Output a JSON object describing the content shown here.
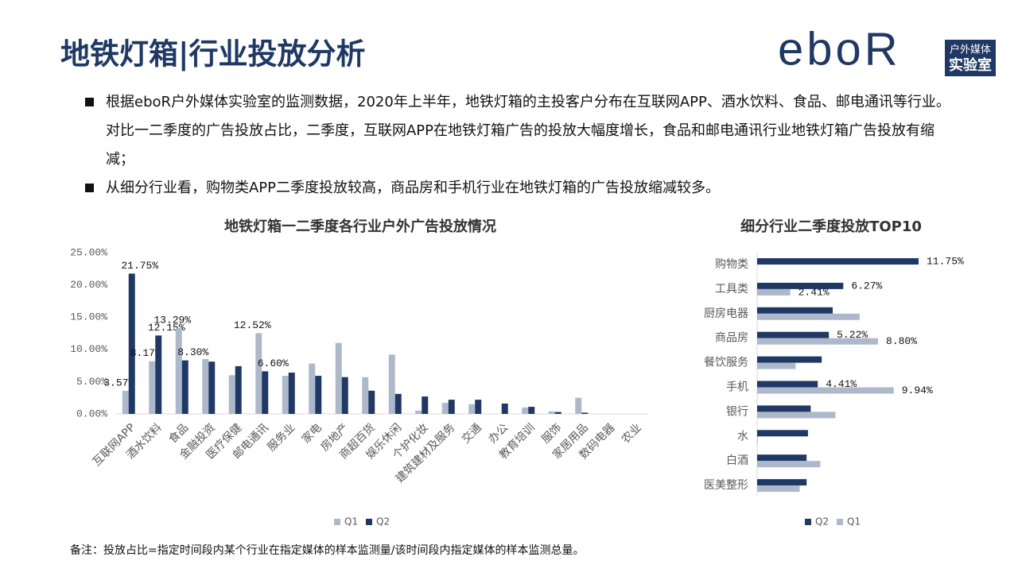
{
  "header": {
    "title": "地铁灯箱|行业投放分析"
  },
  "logo": {
    "mark": "eboR",
    "line1": "户外媒体",
    "line2": "实验室"
  },
  "bullets": [
    "根据eboR户外媒体实验室的监测数据，2020年上半年，地铁灯箱的主投客户分布在互联网APP、酒水饮料、食品、邮电通讯等行业。对比一二季度的广告投放占比，二季度，互联网APP在地铁灯箱广告的投放大幅度增长，食品和邮电通讯行业地铁灯箱广告投放有缩减；",
    "从细分行业看，购物类APP二季度投放较高，商品房和手机行业在地铁灯箱的广告投放缩减较多。"
  ],
  "note": "备注：投放占比=指定时间段内某个行业在指定媒体的样本监测量/该时间段内指定媒体的样本监测总量。",
  "chart_data": [
    {
      "type": "bar",
      "title": "地铁灯箱一二季度各行业户外广告投放情况",
      "categories": [
        "互联网APP",
        "酒水饮料",
        "食品",
        "金融投资",
        "医疗保健",
        "邮电通讯",
        "服务业",
        "家电",
        "房地产",
        "商超百货",
        "娱乐休闲",
        "个护化妆",
        "建筑建材及服务",
        "交通",
        "办公",
        "教育培训",
        "服饰",
        "家居用品",
        "数码电器",
        "农业"
      ],
      "series": [
        {
          "name": "Q1",
          "color": "#adb9ca",
          "values": [
            3.57,
            8.17,
            13.29,
            8.5,
            6.0,
            12.52,
            5.9,
            7.8,
            11.0,
            5.7,
            9.2,
            0.5,
            1.7,
            1.5,
            0,
            1.0,
            0.4,
            2.5,
            0,
            0
          ],
          "value_labels": [
            "3.57%",
            "8.17%",
            "13.29%",
            null,
            null,
            "12.52%",
            null,
            null,
            null,
            null,
            null,
            null,
            null,
            null,
            null,
            null,
            null,
            null,
            null,
            null
          ]
        },
        {
          "name": "Q2",
          "color": "#203864",
          "values": [
            21.75,
            12.15,
            8.3,
            8.1,
            7.4,
            6.6,
            6.4,
            5.9,
            5.7,
            3.6,
            3.1,
            2.7,
            2.2,
            2.2,
            1.6,
            1.1,
            0.3,
            0.2,
            0,
            0
          ],
          "value_labels": [
            "21.75%",
            "12.15%",
            "8.30%",
            null,
            null,
            "6.60%",
            null,
            null,
            null,
            null,
            null,
            null,
            null,
            null,
            null,
            null,
            null,
            null,
            null,
            null
          ]
        }
      ],
      "ylim": [
        0,
        25
      ],
      "yticks": [
        {
          "value": 0,
          "label": "0.00%"
        },
        {
          "value": 5,
          "label": "5.00%"
        },
        {
          "value": 10,
          "label": "10.00%"
        },
        {
          "value": 15,
          "label": "15.00%"
        },
        {
          "value": 20,
          "label": "20.00%"
        },
        {
          "value": 25,
          "label": "25.00%"
        }
      ],
      "grid": false,
      "legend": "bottom"
    },
    {
      "type": "hbar",
      "title": "细分行业二季度投放TOP10",
      "categories": [
        "购物类",
        "工具类",
        "厨房电器",
        "商品房",
        "餐饮服务",
        "手机",
        "银行",
        "水",
        "白酒",
        "医美整形"
      ],
      "series": [
        {
          "name": "Q2",
          "color": "#203864",
          "values": [
            11.75,
            6.27,
            5.5,
            5.22,
            4.7,
            4.41,
            3.9,
            3.7,
            3.6,
            3.6
          ],
          "value_labels": [
            "11.75%",
            "6.27%",
            null,
            "5.22%",
            null,
            "4.41%",
            null,
            null,
            null,
            null
          ]
        },
        {
          "name": "Q1",
          "color": "#adb9ca",
          "values": [
            0,
            2.41,
            7.46,
            8.8,
            2.8,
            9.94,
            5.7,
            0.05,
            4.6,
            3.1
          ],
          "value_labels": [
            null,
            "2.41%",
            null,
            "8.80%",
            null,
            "9.94%",
            null,
            null,
            null,
            null
          ]
        }
      ],
      "legend": "bottom"
    }
  ]
}
